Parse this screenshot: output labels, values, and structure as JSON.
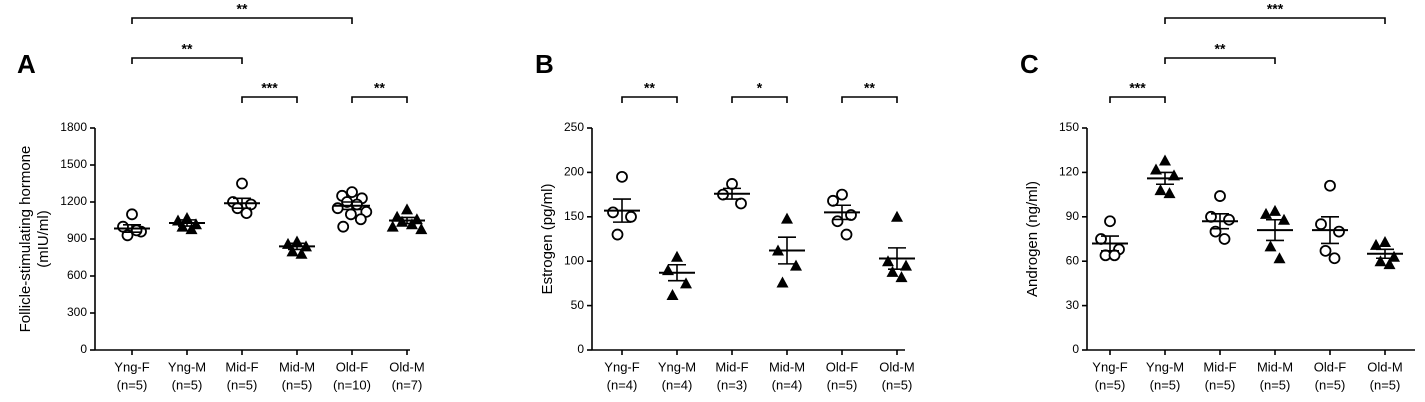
{
  "chart_data": [
    {
      "type": "dotplot",
      "panel": "A",
      "y_label": [
        "Follicle-stimulating hormone",
        "(mIU/ml)"
      ],
      "ylim": [
        0,
        1800
      ],
      "yticks": [
        0,
        300,
        600,
        900,
        1200,
        1500,
        1800
      ],
      "groups": [
        {
          "name": "Yng-F",
          "n_label": "(n=5)",
          "marker": "circle",
          "points": [
            1100,
            1000,
            960,
            930,
            970
          ],
          "mean": 985,
          "sem": 30
        },
        {
          "name": "Yng-M",
          "n_label": "(n=5)",
          "marker": "triangle",
          "points": [
            1070,
            1050,
            1020,
            1000,
            980
          ],
          "mean": 1030,
          "sem": 25
        },
        {
          "name": "Mid-F",
          "n_label": "(n=5)",
          "marker": "circle",
          "points": [
            1350,
            1200,
            1180,
            1150,
            1110
          ],
          "mean": 1190,
          "sem": 40
        },
        {
          "name": "Mid-M",
          "n_label": "(n=5)",
          "marker": "triangle",
          "points": [
            880,
            860,
            840,
            800,
            780
          ],
          "mean": 840,
          "sem": 25
        },
        {
          "name": "Old-F",
          "n_label": "(n=10)",
          "marker": "circle",
          "points": [
            1280,
            1250,
            1230,
            1200,
            1180,
            1150,
            1120,
            1100,
            1060,
            1000
          ],
          "mean": 1170,
          "sem": 30
        },
        {
          "name": "Old-M",
          "n_label": "(n=7)",
          "marker": "triangle",
          "points": [
            1140,
            1080,
            1060,
            1040,
            1020,
            1000,
            980
          ],
          "mean": 1050,
          "sem": 25
        }
      ],
      "brackets": [
        {
          "from": 0,
          "to": 4,
          "label": "**"
        },
        {
          "from": 0,
          "to": 2,
          "label": "**"
        },
        {
          "from": 2,
          "to": 3,
          "label": "***"
        },
        {
          "from": 4,
          "to": 5,
          "label": "**"
        }
      ]
    },
    {
      "type": "dotplot",
      "panel": "B",
      "y_label": [
        "Estrogen (pg/ml)"
      ],
      "ylim": [
        0,
        250
      ],
      "yticks": [
        0,
        50,
        100,
        150,
        200,
        250
      ],
      "groups": [
        {
          "name": "Yng-F",
          "n_label": "(n=4)",
          "marker": "circle",
          "points": [
            195,
            155,
            150,
            130
          ],
          "mean": 157,
          "sem": 13
        },
        {
          "name": "Yng-M",
          "n_label": "(n=4)",
          "marker": "triangle",
          "points": [
            105,
            90,
            75,
            62
          ],
          "mean": 87,
          "sem": 9
        },
        {
          "name": "Mid-F",
          "n_label": "(n=3)",
          "marker": "circle",
          "points": [
            187,
            175,
            165
          ],
          "mean": 176,
          "sem": 6
        },
        {
          "name": "Mid-M",
          "n_label": "(n=4)",
          "marker": "triangle",
          "points": [
            148,
            112,
            95,
            76
          ],
          "mean": 112,
          "sem": 15
        },
        {
          "name": "Old-F",
          "n_label": "(n=5)",
          "marker": "circle",
          "points": [
            175,
            168,
            152,
            145,
            130
          ],
          "mean": 155,
          "sem": 8
        },
        {
          "name": "Old-M",
          "n_label": "(n=5)",
          "marker": "triangle",
          "points": [
            150,
            100,
            95,
            88,
            82
          ],
          "mean": 103,
          "sem": 12
        }
      ],
      "brackets": [
        {
          "from": 0,
          "to": 1,
          "label": "**"
        },
        {
          "from": 2,
          "to": 3,
          "label": "*"
        },
        {
          "from": 4,
          "to": 5,
          "label": "**"
        }
      ]
    },
    {
      "type": "dotplot",
      "panel": "C",
      "y_label": [
        "Androgen (ng/ml)"
      ],
      "ylim": [
        0,
        150
      ],
      "yticks": [
        0,
        30,
        60,
        90,
        120,
        150
      ],
      "groups": [
        {
          "name": "Yng-F",
          "n_label": "(n=5)",
          "marker": "circle",
          "points": [
            87,
            75,
            68,
            64,
            64
          ],
          "mean": 72,
          "sem": 5
        },
        {
          "name": "Yng-M",
          "n_label": "(n=5)",
          "marker": "triangle",
          "points": [
            128,
            122,
            118,
            108,
            106
          ],
          "mean": 116,
          "sem": 4
        },
        {
          "name": "Mid-F",
          "n_label": "(n=5)",
          "marker": "circle",
          "points": [
            104,
            90,
            88,
            80,
            75
          ],
          "mean": 87,
          "sem": 5
        },
        {
          "name": "Mid-M",
          "n_label": "(n=5)",
          "marker": "triangle",
          "points": [
            94,
            92,
            88,
            70,
            62
          ],
          "mean": 81,
          "sem": 7
        },
        {
          "name": "Old-F",
          "n_label": "(n=5)",
          "marker": "circle",
          "points": [
            111,
            85,
            80,
            67,
            62
          ],
          "mean": 81,
          "sem": 9
        },
        {
          "name": "Old-M",
          "n_label": "(n=5)",
          "marker": "triangle",
          "points": [
            73,
            71,
            63,
            60,
            58
          ],
          "mean": 65,
          "sem": 3
        }
      ],
      "brackets": [
        {
          "from": 0,
          "to": 1,
          "label": "***"
        },
        {
          "from": 1,
          "to": 5,
          "label": "***"
        },
        {
          "from": 1,
          "to": 3,
          "label": "**"
        }
      ]
    }
  ]
}
